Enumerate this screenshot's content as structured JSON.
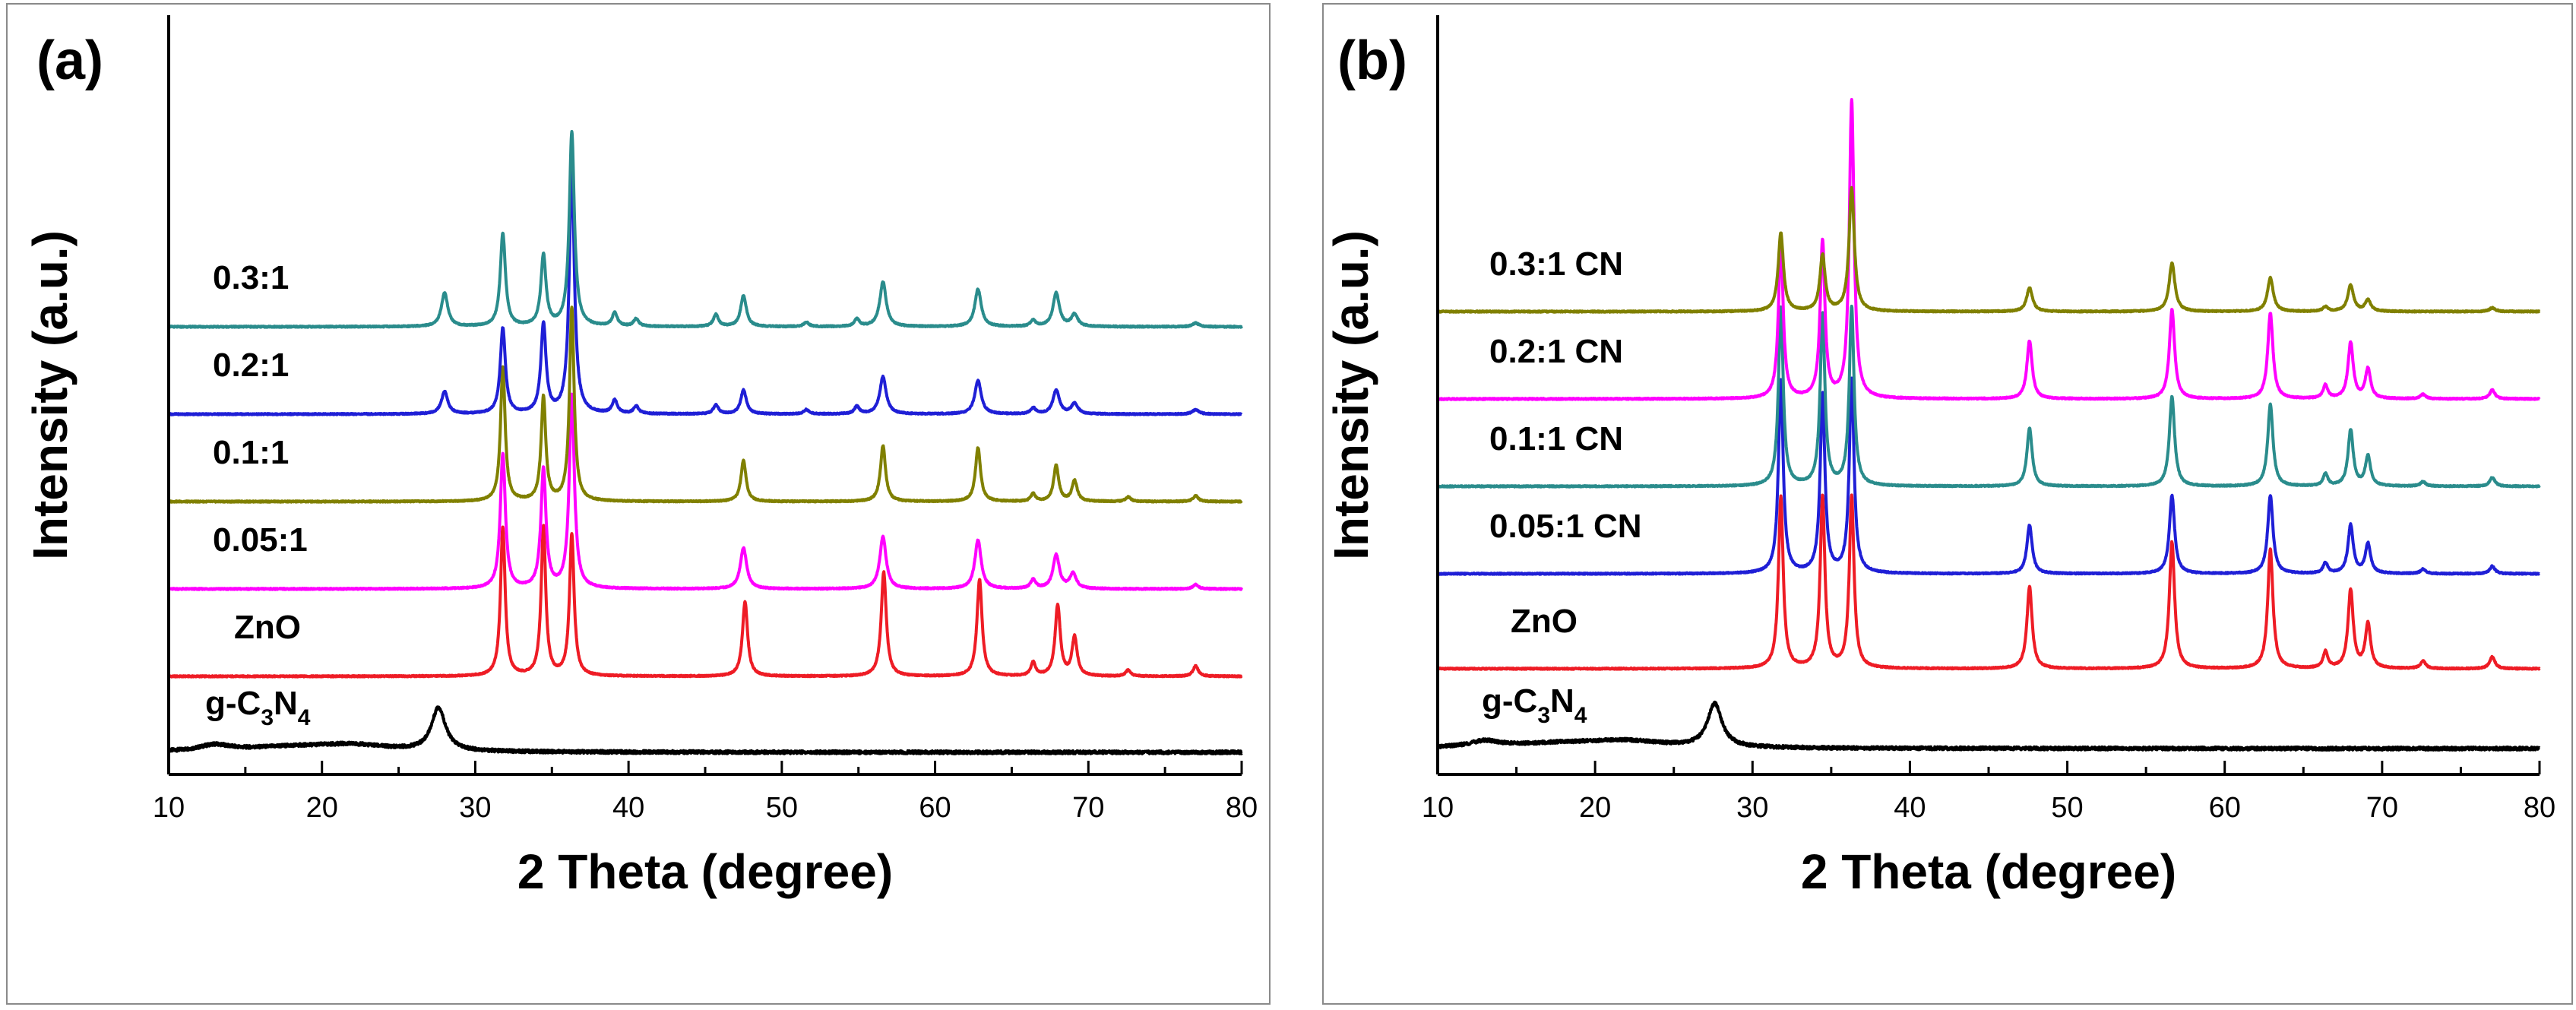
{
  "chart_data": [
    {
      "type": "line",
      "panel_label": "(a)",
      "xlabel": "2 Theta (degree)",
      "ylabel": "Intensity (a.u.)",
      "xlim": [
        10,
        80
      ],
      "xticks": [
        10,
        20,
        30,
        40,
        50,
        60,
        70,
        80
      ],
      "yticks_shown": false,
      "series": [
        {
          "name": "g-C3N4",
          "label_main": "g-C",
          "label_sub1": "3",
          "label_mid": "N",
          "label_sub2": "4",
          "color": "#000000",
          "baseline": 0,
          "noise": 2,
          "peaks": [
            [
              13.0,
              8,
              1.2
            ],
            [
              18.0,
              6,
              4.0
            ],
            [
              22.0,
              8,
              3.0
            ],
            [
              27.6,
              58,
              0.55
            ]
          ]
        },
        {
          "name": "ZnO",
          "color": "#ee1c25",
          "baseline": 100,
          "peaks": [
            [
              31.8,
              200,
              0.18
            ],
            [
              34.45,
              200,
              0.18
            ],
            [
              36.3,
              190,
              0.18
            ],
            [
              47.6,
              100,
              0.2
            ],
            [
              56.65,
              140,
              0.2
            ],
            [
              62.9,
              130,
              0.2
            ],
            [
              66.4,
              18,
              0.18
            ],
            [
              68.0,
              95,
              0.2
            ],
            [
              69.1,
              52,
              0.2
            ],
            [
              72.6,
              8,
              0.2
            ],
            [
              77.0,
              14,
              0.2
            ]
          ]
        },
        {
          "name": "0.05:1",
          "color": "#ff00ff",
          "baseline": 215,
          "peaks": [
            [
              31.8,
              180,
              0.2
            ],
            [
              34.45,
              160,
              0.2
            ],
            [
              36.3,
              260,
              0.2
            ],
            [
              47.5,
              55,
              0.25
            ],
            [
              56.6,
              70,
              0.25
            ],
            [
              62.8,
              65,
              0.25
            ],
            [
              66.4,
              12,
              0.2
            ],
            [
              67.9,
              45,
              0.25
            ],
            [
              69.0,
              20,
              0.25
            ],
            [
              77.0,
              6,
              0.2
            ]
          ]
        },
        {
          "name": "0.1:1",
          "color": "#808000",
          "baseline": 330,
          "peaks": [
            [
              31.8,
              180,
              0.18
            ],
            [
              34.45,
              140,
              0.18
            ],
            [
              36.3,
              260,
              0.18
            ],
            [
              47.5,
              55,
              0.2
            ],
            [
              56.6,
              75,
              0.2
            ],
            [
              62.8,
              72,
              0.2
            ],
            [
              66.4,
              10,
              0.18
            ],
            [
              67.9,
              48,
              0.2
            ],
            [
              69.1,
              28,
              0.2
            ],
            [
              72.6,
              6,
              0.2
            ],
            [
              77.0,
              8,
              0.2
            ]
          ]
        },
        {
          "name": "0.2:1",
          "color": "#1f1fd6",
          "baseline": 445,
          "peaks": [
            [
              28.0,
              30,
              0.25
            ],
            [
              31.8,
              115,
              0.2
            ],
            [
              34.45,
              120,
              0.2
            ],
            [
              36.3,
              330,
              0.2
            ],
            [
              39.1,
              18,
              0.2
            ],
            [
              40.5,
              10,
              0.2
            ],
            [
              45.7,
              12,
              0.2
            ],
            [
              47.5,
              32,
              0.22
            ],
            [
              51.6,
              6,
              0.2
            ],
            [
              54.9,
              10,
              0.2
            ],
            [
              56.6,
              50,
              0.25
            ],
            [
              62.8,
              45,
              0.25
            ],
            [
              66.4,
              8,
              0.2
            ],
            [
              67.9,
              32,
              0.25
            ],
            [
              69.1,
              14,
              0.25
            ],
            [
              77.0,
              6,
              0.25
            ]
          ]
        },
        {
          "name": "0.3:1",
          "color": "#2a8c8c",
          "baseline": 560,
          "peaks": [
            [
              28.0,
              45,
              0.25
            ],
            [
              31.8,
              125,
              0.2
            ],
            [
              34.45,
              95,
              0.2
            ],
            [
              36.3,
              260,
              0.2
            ],
            [
              39.1,
              18,
              0.2
            ],
            [
              40.5,
              10,
              0.2
            ],
            [
              45.7,
              16,
              0.2
            ],
            [
              47.5,
              42,
              0.22
            ],
            [
              51.6,
              6,
              0.2
            ],
            [
              54.9,
              10,
              0.2
            ],
            [
              56.6,
              60,
              0.25
            ],
            [
              62.8,
              50,
              0.25
            ],
            [
              66.4,
              8,
              0.2
            ],
            [
              67.9,
              45,
              0.25
            ],
            [
              69.1,
              16,
              0.25
            ],
            [
              77.0,
              5,
              0.25
            ]
          ]
        }
      ]
    },
    {
      "type": "line",
      "panel_label": "(b)",
      "xlabel": "2 Theta (degree)",
      "ylabel": "Intensity (a.u.)",
      "xlim": [
        10,
        80
      ],
      "xticks": [
        10,
        20,
        30,
        40,
        50,
        60,
        70,
        80
      ],
      "yticks_shown": false,
      "series": [
        {
          "name": "g-C3N4",
          "label_main": "g-C",
          "label_sub1": "3",
          "label_mid": "N",
          "label_sub2": "4",
          "color": "#000000",
          "baseline": 0,
          "noise": 2,
          "peaks": [
            [
              13.0,
              8,
              1.2
            ],
            [
              18.0,
              6,
              4.0
            ],
            [
              22.0,
              8,
              3.0
            ],
            [
              27.6,
              58,
              0.55
            ]
          ]
        },
        {
          "name": "ZnO",
          "color": "#ee1c25",
          "baseline": 105,
          "peaks": [
            [
              31.8,
              230,
              0.18
            ],
            [
              34.45,
              230,
              0.18
            ],
            [
              36.3,
              230,
              0.18
            ],
            [
              47.6,
              110,
              0.2
            ],
            [
              56.65,
              170,
              0.2
            ],
            [
              62.9,
              160,
              0.2
            ],
            [
              66.4,
              22,
              0.18
            ],
            [
              68.0,
              105,
              0.2
            ],
            [
              69.1,
              60,
              0.2
            ],
            [
              72.6,
              10,
              0.2
            ],
            [
              77.0,
              16,
              0.2
            ]
          ]
        },
        {
          "name": "0.05:1 CN",
          "color": "#1f1fd6",
          "baseline": 230,
          "peaks": [
            [
              31.8,
              260,
              0.18
            ],
            [
              34.45,
              240,
              0.18
            ],
            [
              36.3,
              260,
              0.18
            ],
            [
              47.6,
              65,
              0.2
            ],
            [
              56.65,
              105,
              0.2
            ],
            [
              62.9,
              105,
              0.2
            ],
            [
              66.4,
              14,
              0.18
            ],
            [
              68.0,
              65,
              0.2
            ],
            [
              69.1,
              40,
              0.2
            ],
            [
              72.6,
              6,
              0.2
            ],
            [
              77.0,
              10,
              0.2
            ]
          ]
        },
        {
          "name": "0.1:1 CN",
          "color": "#2a8c8c",
          "baseline": 345,
          "peaks": [
            [
              31.8,
              240,
              0.18
            ],
            [
              34.45,
              230,
              0.18
            ],
            [
              36.3,
              240,
              0.18
            ],
            [
              47.6,
              78,
              0.2
            ],
            [
              56.65,
              120,
              0.2
            ],
            [
              62.9,
              110,
              0.2
            ],
            [
              66.4,
              16,
              0.18
            ],
            [
              68.0,
              75,
              0.2
            ],
            [
              69.1,
              40,
              0.2
            ],
            [
              72.6,
              6,
              0.2
            ],
            [
              77.0,
              12,
              0.2
            ]
          ]
        },
        {
          "name": "0.2:1 CN",
          "color": "#ff00ff",
          "baseline": 460,
          "peaks": [
            [
              31.8,
              210,
              0.18
            ],
            [
              34.45,
              210,
              0.18
            ],
            [
              36.3,
              400,
              0.18
            ],
            [
              47.6,
              78,
              0.2
            ],
            [
              56.65,
              120,
              0.2
            ],
            [
              62.9,
              115,
              0.2
            ],
            [
              66.4,
              18,
              0.18
            ],
            [
              68.0,
              75,
              0.2
            ],
            [
              69.1,
              40,
              0.2
            ],
            [
              72.6,
              6,
              0.2
            ],
            [
              77.0,
              12,
              0.2
            ]
          ]
        },
        {
          "name": "0.3:1 CN",
          "color": "#808000",
          "baseline": 575,
          "peaks": [
            [
              31.8,
              105,
              0.2
            ],
            [
              34.45,
              75,
              0.2
            ],
            [
              36.3,
              165,
              0.2
            ],
            [
              47.6,
              32,
              0.22
            ],
            [
              56.65,
              65,
              0.22
            ],
            [
              62.9,
              45,
              0.22
            ],
            [
              66.4,
              6,
              0.2
            ],
            [
              68.0,
              35,
              0.22
            ],
            [
              69.1,
              15,
              0.22
            ],
            [
              77.0,
              5,
              0.22
            ]
          ]
        }
      ]
    }
  ]
}
